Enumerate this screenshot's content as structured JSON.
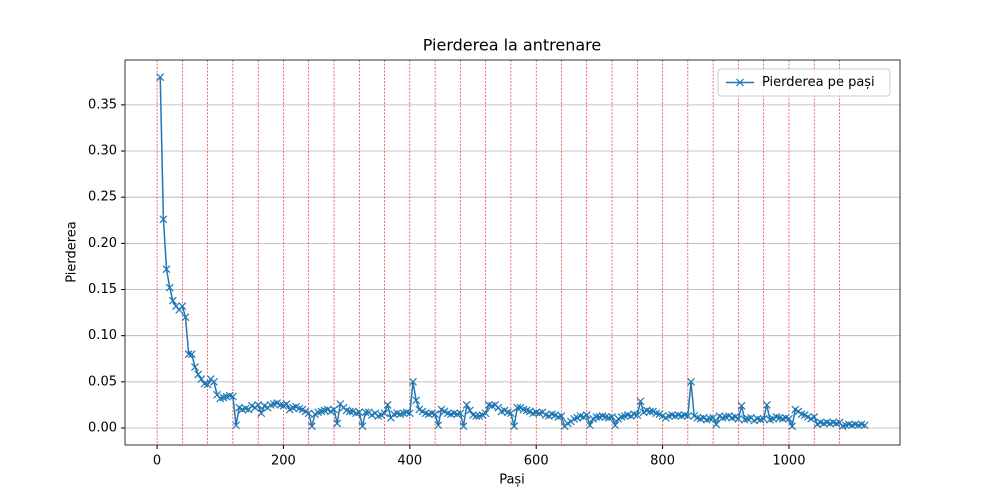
{
  "chart_data": {
    "type": "line",
    "title": "Pierderea la antrenare",
    "x_label": "Pași",
    "y_label": "Pierderea",
    "x": [
      5,
      10,
      15,
      20,
      25,
      30,
      35,
      40,
      45,
      50,
      55,
      60,
      65,
      70,
      75,
      80,
      85,
      90,
      95,
      100,
      105,
      110,
      115,
      120,
      125,
      130,
      135,
      140,
      145,
      150,
      155,
      160,
      165,
      170,
      175,
      180,
      185,
      190,
      195,
      200,
      205,
      210,
      215,
      220,
      225,
      230,
      235,
      240,
      245,
      250,
      255,
      260,
      265,
      270,
      275,
      280,
      285,
      290,
      295,
      300,
      305,
      310,
      315,
      320,
      325,
      330,
      335,
      340,
      345,
      350,
      355,
      360,
      365,
      370,
      375,
      380,
      385,
      390,
      395,
      400,
      405,
      410,
      415,
      420,
      425,
      430,
      435,
      440,
      445,
      450,
      455,
      460,
      465,
      470,
      475,
      480,
      485,
      490,
      495,
      500,
      505,
      510,
      515,
      520,
      525,
      530,
      535,
      540,
      545,
      550,
      555,
      560,
      565,
      570,
      575,
      580,
      585,
      590,
      595,
      600,
      605,
      610,
      615,
      620,
      625,
      630,
      635,
      640,
      645,
      650,
      655,
      660,
      665,
      670,
      675,
      680,
      685,
      690,
      695,
      700,
      705,
      710,
      715,
      720,
      725,
      730,
      735,
      740,
      745,
      750,
      755,
      760,
      765,
      770,
      775,
      780,
      785,
      790,
      795,
      800,
      805,
      810,
      815,
      820,
      825,
      830,
      835,
      840,
      845,
      850,
      855,
      860,
      865,
      870,
      875,
      880,
      885,
      890,
      895,
      900,
      905,
      910,
      915,
      920,
      925,
      930,
      935,
      940,
      945,
      950,
      955,
      960,
      965,
      970,
      975,
      980,
      985,
      990,
      995,
      1000,
      1005,
      1010,
      1015,
      1020,
      1025,
      1030,
      1035,
      1040,
      1045,
      1050,
      1055,
      1060,
      1065,
      1070,
      1075,
      1080,
      1085,
      1090,
      1095,
      1100,
      1105,
      1110,
      1115,
      1120
    ],
    "series": [
      {
        "name": "Pierderea pe pași",
        "color": "#1f77b4",
        "marker": "x",
        "values": [
          0.38,
          0.226,
          0.172,
          0.152,
          0.138,
          0.132,
          0.128,
          0.132,
          0.12,
          0.08,
          0.08,
          0.066,
          0.058,
          0.053,
          0.048,
          0.047,
          0.053,
          0.05,
          0.036,
          0.032,
          0.033,
          0.034,
          0.035,
          0.034,
          0.003,
          0.022,
          0.02,
          0.021,
          0.02,
          0.024,
          0.022,
          0.025,
          0.016,
          0.024,
          0.022,
          0.025,
          0.026,
          0.027,
          0.025,
          0.024,
          0.026,
          0.02,
          0.022,
          0.023,
          0.021,
          0.02,
          0.018,
          0.016,
          0.002,
          0.015,
          0.017,
          0.018,
          0.019,
          0.02,
          0.018,
          0.02,
          0.005,
          0.026,
          0.022,
          0.019,
          0.018,
          0.018,
          0.016,
          0.017,
          0.002,
          0.017,
          0.017,
          0.014,
          0.016,
          0.013,
          0.014,
          0.016,
          0.025,
          0.011,
          0.015,
          0.016,
          0.015,
          0.016,
          0.017,
          0.016,
          0.05,
          0.03,
          0.02,
          0.018,
          0.016,
          0.015,
          0.016,
          0.015,
          0.003,
          0.02,
          0.018,
          0.016,
          0.015,
          0.016,
          0.015,
          0.016,
          0.002,
          0.025,
          0.019,
          0.014,
          0.013,
          0.013,
          0.014,
          0.016,
          0.025,
          0.024,
          0.025,
          0.022,
          0.018,
          0.019,
          0.017,
          0.016,
          0.002,
          0.022,
          0.022,
          0.02,
          0.019,
          0.018,
          0.016,
          0.017,
          0.016,
          0.017,
          0.014,
          0.013,
          0.015,
          0.014,
          0.012,
          0.013,
          0.002,
          0.005,
          0.007,
          0.01,
          0.011,
          0.013,
          0.012,
          0.014,
          0.003,
          0.01,
          0.012,
          0.012,
          0.013,
          0.012,
          0.011,
          0.012,
          0.003,
          0.01,
          0.012,
          0.013,
          0.014,
          0.013,
          0.015,
          0.014,
          0.029,
          0.017,
          0.019,
          0.018,
          0.018,
          0.016,
          0.015,
          0.013,
          0.011,
          0.013,
          0.014,
          0.013,
          0.014,
          0.013,
          0.014,
          0.013,
          0.05,
          0.013,
          0.011,
          0.01,
          0.011,
          0.009,
          0.01,
          0.011,
          0.004,
          0.013,
          0.011,
          0.012,
          0.013,
          0.011,
          0.012,
          0.01,
          0.024,
          0.009,
          0.01,
          0.011,
          0.008,
          0.01,
          0.009,
          0.01,
          0.025,
          0.009,
          0.01,
          0.012,
          0.011,
          0.01,
          0.011,
          0.01,
          0.002,
          0.02,
          0.018,
          0.015,
          0.014,
          0.012,
          0.01,
          0.012,
          0.004,
          0.006,
          0.005,
          0.006,
          0.005,
          0.006,
          0.005,
          0.006,
          0.002,
          0.003,
          0.004,
          0.003,
          0.004,
          0.003,
          0.004,
          0.003
        ]
      }
    ],
    "vlines": {
      "color": "#ff0000",
      "values": [
        0,
        40,
        80,
        120,
        160,
        200,
        240,
        280,
        320,
        360,
        400,
        440,
        480,
        520,
        560,
        600,
        640,
        680,
        720,
        760,
        800,
        840,
        880,
        920,
        960,
        1000,
        1040,
        1080
      ]
    },
    "xlim": [
      -50.75,
      1175.75
    ],
    "ylim": [
      -0.0184,
      0.3986
    ],
    "xticks": [
      0,
      200,
      400,
      600,
      800,
      1000
    ],
    "yticks": [
      {
        "value": 0,
        "label": "0.00"
      },
      {
        "value": 0.05,
        "label": "0.05"
      },
      {
        "value": 0.1,
        "label": "0.10"
      },
      {
        "value": 0.15,
        "label": "0.15"
      },
      {
        "value": 0.2,
        "label": "0.20"
      },
      {
        "value": 0.25,
        "label": "0.25"
      },
      {
        "value": 0.3,
        "label": "0.30"
      },
      {
        "value": 0.35,
        "label": "0.35"
      }
    ],
    "grid": "y",
    "legend": "upper right"
  }
}
